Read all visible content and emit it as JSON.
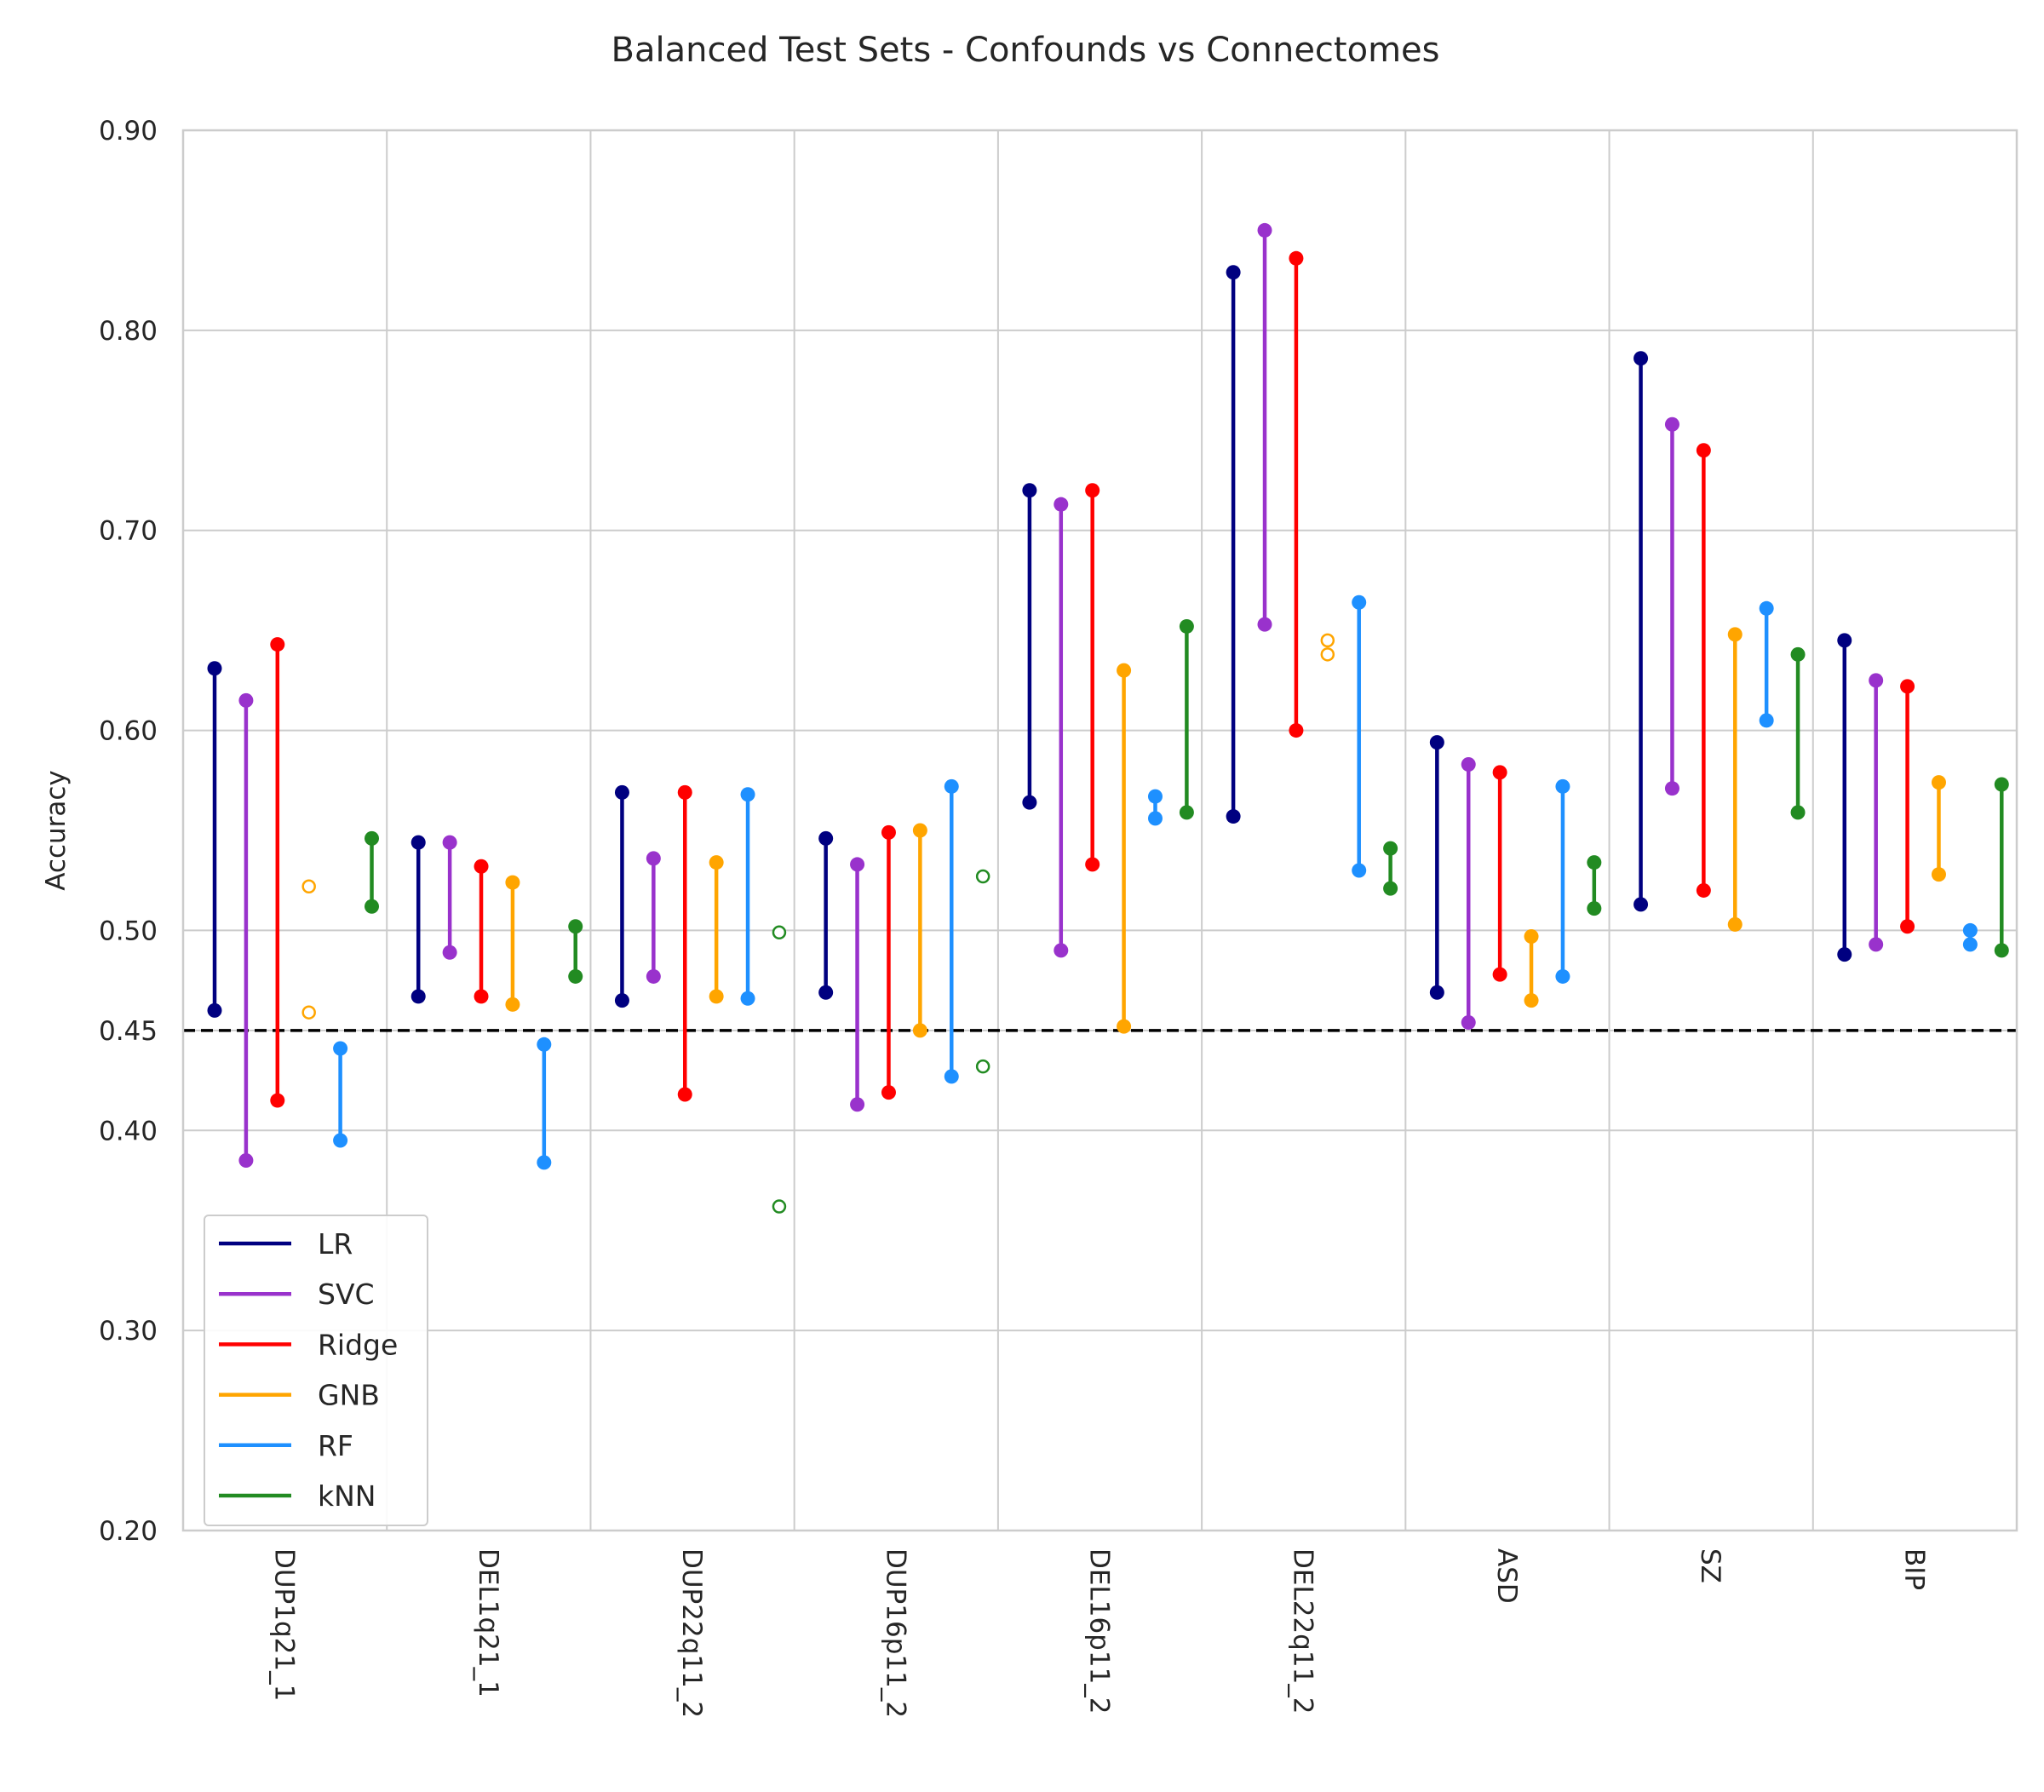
{
  "chart_data": {
    "type": "dumbbell",
    "title": "Balanced Test Sets - Confounds vs Connectomes",
    "xlabel": "",
    "ylabel": "Accuracy",
    "ylim": [
      0.2,
      0.9
    ],
    "yticks": [
      "0.90",
      "0.80",
      "0.70",
      "0.60",
      "0.50",
      "0.45",
      "0.40",
      "0.30",
      "0.20"
    ],
    "ytick_values": [
      0.9,
      0.8,
      0.7,
      0.6,
      0.5,
      0.45,
      0.4,
      0.3,
      0.2
    ],
    "grid": true,
    "legend_position": "lower-left",
    "reference_line": {
      "value": 0.45,
      "style": "dashed",
      "color": "#000000"
    },
    "categories": [
      "DUP1q21_1",
      "DEL1q21_1",
      "DUP22q11_2",
      "DUP16p11_2",
      "DEL16p11_2",
      "DEL22q11_2",
      "ASD",
      "SZ",
      "BIP"
    ],
    "series": [
      {
        "name": "LR",
        "color": "#000080",
        "ranges": [
          [
            0.46,
            0.631
          ],
          [
            0.467,
            0.544
          ],
          [
            0.465,
            0.569
          ],
          [
            0.469,
            0.546
          ],
          [
            0.564,
            0.72
          ],
          [
            0.557,
            0.829
          ],
          [
            0.469,
            0.594
          ],
          [
            0.513,
            0.786
          ],
          [
            0.488,
            0.645
          ]
        ]
      },
      {
        "name": "SVC",
        "color": "#9932CC",
        "ranges": [
          [
            0.385,
            0.615
          ],
          [
            0.489,
            0.544
          ],
          [
            0.477,
            0.536
          ],
          [
            0.413,
            0.533
          ],
          [
            0.49,
            0.713
          ],
          [
            0.653,
            0.85
          ],
          [
            0.454,
            0.583
          ],
          [
            0.571,
            0.753
          ],
          [
            0.493,
            0.625
          ]
        ]
      },
      {
        "name": "Ridge",
        "color": "#FF0000",
        "ranges": [
          [
            0.415,
            0.643
          ],
          [
            0.467,
            0.532
          ],
          [
            0.418,
            0.569
          ],
          [
            0.419,
            0.549
          ],
          [
            0.533,
            0.72
          ],
          [
            0.6,
            0.836
          ],
          [
            0.478,
            0.579
          ],
          [
            0.52,
            0.74
          ],
          [
            0.502,
            0.622
          ]
        ]
      },
      {
        "name": "GNB",
        "color": "#FFA500",
        "ranges": [
          [
            0.459,
            0.522
          ],
          [
            0.463,
            0.524
          ],
          [
            0.467,
            0.534
          ],
          [
            0.45,
            0.55
          ],
          [
            0.452,
            0.63
          ],
          [
            0.638,
            0.645
          ],
          [
            0.465,
            0.497
          ],
          [
            0.503,
            0.648
          ],
          [
            0.528,
            0.574
          ]
        ]
      },
      {
        "name": "RF",
        "color": "#1E90FF",
        "ranges": [
          [
            0.395,
            0.441
          ],
          [
            0.384,
            0.443
          ],
          [
            0.466,
            0.568
          ],
          [
            0.427,
            0.572
          ],
          [
            0.556,
            0.567
          ],
          [
            0.53,
            0.664
          ],
          [
            0.477,
            0.572
          ],
          [
            0.605,
            0.661
          ],
          [
            0.493,
            0.5
          ]
        ]
      },
      {
        "name": "kNN",
        "color": "#228B22",
        "ranges": [
          [
            0.512,
            0.546
          ],
          [
            0.477,
            0.502
          ],
          [
            0.362,
            0.499
          ],
          [
            0.432,
            0.527
          ],
          [
            0.559,
            0.652
          ],
          [
            0.521,
            0.541
          ],
          [
            0.511,
            0.534
          ],
          [
            0.559,
            0.638
          ],
          [
            0.49,
            0.573
          ]
        ]
      }
    ],
    "hollow_markers": [
      {
        "category": "DUP1q21_1",
        "series": "GNB"
      },
      {
        "category": "DUP22q11_2",
        "series": "kNN"
      },
      {
        "category": "DUP16p11_2",
        "series": "kNN"
      },
      {
        "category": "DEL22q11_2",
        "series": "GNB"
      }
    ]
  }
}
